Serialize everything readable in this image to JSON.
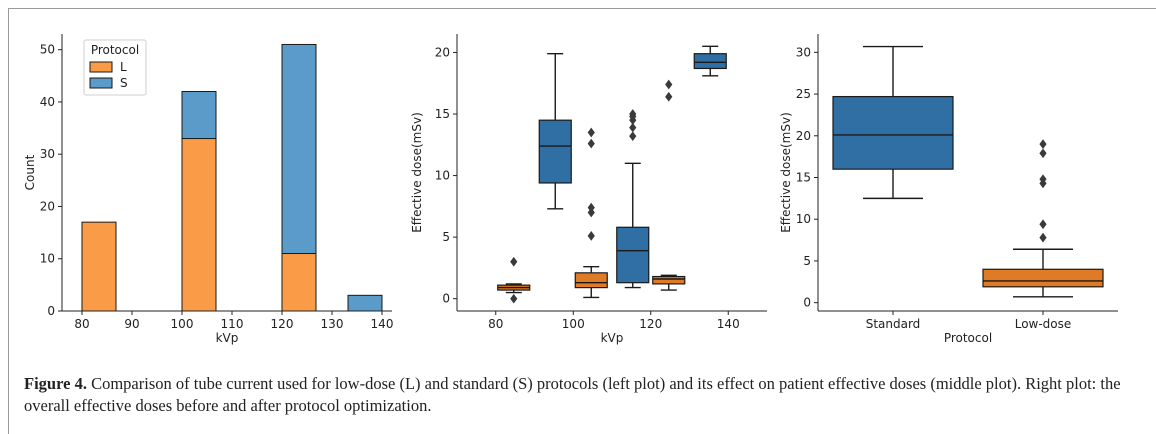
{
  "caption": {
    "label": "Figure 4.",
    "text": " Comparison of tube current used for low-dose (L) and standard (S) protocols (left plot) and its effect on patient effective doses (middle plot). Right plot: the overall effective doses before and after protocol optimization."
  },
  "colors": {
    "orange": "#f99b47",
    "blue": "#5a9bc9",
    "box_orange": "#e07b25",
    "box_blue": "#2f6fa3",
    "edge": "#1a1a1a"
  },
  "chart_data": [
    {
      "type": "bar",
      "stacked": true,
      "xlabel": "kVp",
      "ylabel": "Count",
      "xlim": [
        76,
        142
      ],
      "ylim": [
        0,
        53
      ],
      "xticks": [
        80,
        90,
        100,
        110,
        120,
        130,
        140
      ],
      "yticks": [
        0,
        10,
        20,
        30,
        40,
        50
      ],
      "bin_width": 6.8,
      "bins": [
        80,
        100,
        120,
        133.2
      ],
      "legend": {
        "title": "Protocol",
        "position": "top-left"
      },
      "series": [
        {
          "name": "L",
          "values": [
            17,
            33,
            11,
            0
          ]
        },
        {
          "name": "S",
          "values": [
            0,
            9,
            40,
            3
          ]
        }
      ]
    },
    {
      "type": "box",
      "xlabel": "kVp",
      "ylabel": "Effective dose(mSv)",
      "categories": [
        "80",
        "100",
        "120",
        "140"
      ],
      "ylim": [
        -1,
        21.5
      ],
      "yticks": [
        0,
        5,
        10,
        15,
        20
      ],
      "series": [
        {
          "name": "S",
          "boxes": [
            null,
            {
              "min": 7.3,
              "q1": 9.4,
              "median": 12.4,
              "q3": 14.5,
              "max": 19.9,
              "outliers": []
            },
            {
              "min": 0.9,
              "q1": 1.3,
              "median": 3.9,
              "q3": 5.8,
              "max": 11.0,
              "outliers": [
                13.2,
                13.9,
                14.5,
                14.8,
                15.0
              ]
            },
            {
              "min": 18.1,
              "q1": 18.7,
              "median": 19.2,
              "q3": 19.9,
              "max": 20.5,
              "outliers": []
            }
          ]
        },
        {
          "name": "L",
          "boxes": [
            {
              "min": 0.5,
              "q1": 0.7,
              "median": 0.9,
              "q3": 1.1,
              "max": 1.2,
              "outliers": [
                0.0,
                3.0
              ]
            },
            {
              "min": 0.1,
              "q1": 0.9,
              "median": 1.3,
              "q3": 2.1,
              "max": 2.6,
              "outliers": [
                5.1,
                7.0,
                7.4,
                12.6,
                13.5
              ]
            },
            {
              "min": 0.7,
              "q1": 1.2,
              "median": 1.6,
              "q3": 1.8,
              "max": 1.9,
              "outliers": [
                16.4,
                17.4
              ]
            },
            null
          ]
        }
      ]
    },
    {
      "type": "box",
      "xlabel": "Protocol",
      "ylabel": "Effective dose(mSv)",
      "categories": [
        "Standard",
        "Low-dose"
      ],
      "ylim": [
        -1,
        32.2
      ],
      "yticks": [
        0,
        5,
        10,
        15,
        20,
        25,
        30
      ],
      "boxes": [
        {
          "min": 12.5,
          "q1": 16.0,
          "median": 20.1,
          "q3": 24.7,
          "max": 30.7,
          "outliers": []
        },
        {
          "min": 0.7,
          "q1": 1.9,
          "median": 2.6,
          "q3": 4.0,
          "max": 6.4,
          "outliers": [
            7.8,
            9.4,
            14.3,
            14.8,
            17.9,
            19.0
          ]
        }
      ]
    }
  ]
}
